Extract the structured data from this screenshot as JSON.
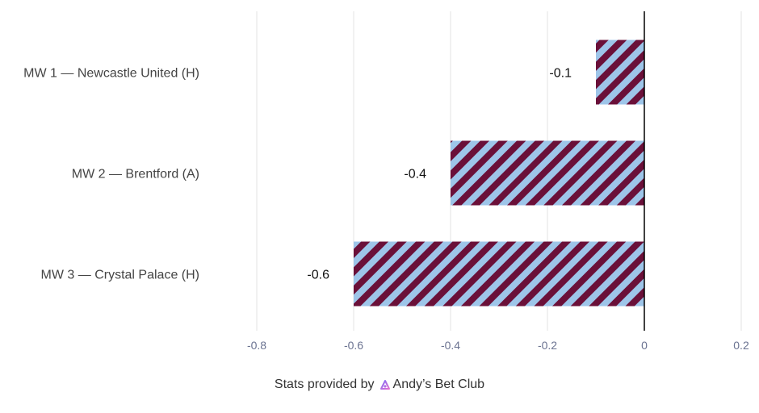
{
  "chart_data": {
    "type": "bar",
    "orientation": "horizontal",
    "categories": [
      "MW 1 — Newcastle United (H)",
      "MW 2 — Brentford (A)",
      "MW 3 — Crystal Palace (H)"
    ],
    "values": [
      -0.1,
      -0.4,
      -0.6
    ],
    "value_labels": [
      "-0.1",
      "-0.4",
      "-0.6"
    ],
    "xlim": [
      -0.8,
      0.2
    ],
    "xticks": [
      -0.8,
      -0.6,
      -0.4,
      -0.2,
      0,
      0.2
    ],
    "xtick_labels": [
      "-0.8",
      "-0.6",
      "-0.4",
      "-0.2",
      "0",
      "0.2"
    ],
    "grid": "vertical",
    "bar_pattern": "diagonal-stripes",
    "colors": {
      "stripe_primary": "#6a1039",
      "stripe_secondary": "#9ec5e9",
      "grid": "#e3e3e3",
      "zero_line": "#000000"
    }
  },
  "footer": {
    "prefix": "Stats provided by",
    "brand": "Andy’s Bet Club",
    "brand_icon": "andys-bet-club-logo-icon"
  }
}
